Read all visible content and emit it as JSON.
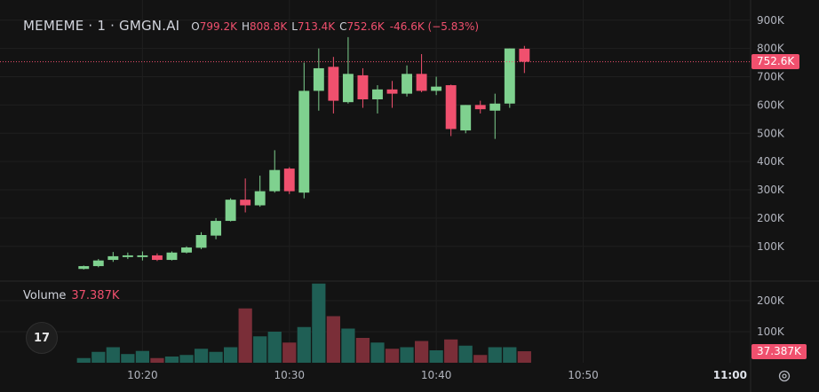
{
  "legend": {
    "symbol": "MEMEME · 1 · GMGN.AI",
    "open_key": "O",
    "open": "799.2K",
    "high_key": "H",
    "high": "808.8K",
    "low_key": "L",
    "low": "713.4K",
    "close_key": "C",
    "close": "752.6K",
    "change": "-46.6K (−5.83%)"
  },
  "volume_legend": {
    "label": "Volume",
    "value": "37.387K"
  },
  "price_tag": "752.6K",
  "volume_tag": "37.387K",
  "logo_text": "17",
  "colors": {
    "up": "#7fd18f",
    "down": "#f0506e",
    "vol_up": "#1f5f55",
    "vol_down": "#7a2e38",
    "background": "#131313",
    "grid": "#1f1f1f"
  },
  "chart_data": {
    "type": "candlestick",
    "x_unit": "time",
    "price_ticks": [
      "100K",
      "200K",
      "300K",
      "400K",
      "500K",
      "600K",
      "700K",
      "800K",
      "900K"
    ],
    "price_tick_values": [
      100,
      200,
      300,
      400,
      500,
      600,
      700,
      800,
      900
    ],
    "price_ylim": [
      -20,
      940
    ],
    "volume_ticks": [
      "100K",
      "200K"
    ],
    "volume_tick_values": [
      100,
      200
    ],
    "volume_ylim": [
      0,
      260
    ],
    "time_ticks": [
      "10:20",
      "10:30",
      "10:40",
      "10:50",
      "11:00"
    ],
    "time_tick_minutes": [
      20,
      30,
      40,
      50,
      60
    ],
    "xlim_minutes": [
      10.3,
      61.4
    ],
    "bars": [
      {
        "t": 16,
        "o": 20,
        "h": 32,
        "l": 18,
        "c": 30,
        "v": 15
      },
      {
        "t": 17,
        "o": 30,
        "h": 55,
        "l": 26,
        "c": 50,
        "v": 35
      },
      {
        "t": 18,
        "o": 52,
        "h": 80,
        "l": 45,
        "c": 65,
        "v": 50
      },
      {
        "t": 19,
        "o": 62,
        "h": 78,
        "l": 55,
        "c": 68,
        "v": 28
      },
      {
        "t": 20,
        "o": 62,
        "h": 82,
        "l": 50,
        "c": 68,
        "v": 38
      },
      {
        "t": 21,
        "o": 68,
        "h": 75,
        "l": 48,
        "c": 52,
        "v": 15
      },
      {
        "t": 22,
        "o": 52,
        "h": 82,
        "l": 50,
        "c": 78,
        "v": 20
      },
      {
        "t": 23,
        "o": 78,
        "h": 100,
        "l": 75,
        "c": 96,
        "v": 25
      },
      {
        "t": 24,
        "o": 95,
        "h": 150,
        "l": 90,
        "c": 140,
        "v": 45
      },
      {
        "t": 25,
        "o": 138,
        "h": 200,
        "l": 125,
        "c": 190,
        "v": 35
      },
      {
        "t": 26,
        "o": 190,
        "h": 270,
        "l": 188,
        "c": 265,
        "v": 50
      },
      {
        "t": 27,
        "o": 265,
        "h": 340,
        "l": 220,
        "c": 245,
        "v": 175
      },
      {
        "t": 28,
        "o": 245,
        "h": 350,
        "l": 240,
        "c": 295,
        "v": 85
      },
      {
        "t": 29,
        "o": 295,
        "h": 440,
        "l": 290,
        "c": 370,
        "v": 100
      },
      {
        "t": 30,
        "o": 375,
        "h": 380,
        "l": 285,
        "c": 295,
        "v": 65
      },
      {
        "t": 31,
        "o": 290,
        "h": 750,
        "l": 270,
        "c": 650,
        "v": 115
      },
      {
        "t": 32,
        "o": 650,
        "h": 800,
        "l": 580,
        "c": 730,
        "v": 255
      },
      {
        "t": 33,
        "o": 735,
        "h": 770,
        "l": 570,
        "c": 615,
        "v": 150
      },
      {
        "t": 34,
        "o": 610,
        "h": 840,
        "l": 605,
        "c": 710,
        "v": 110
      },
      {
        "t": 35,
        "o": 705,
        "h": 730,
        "l": 590,
        "c": 620,
        "v": 80
      },
      {
        "t": 36,
        "o": 620,
        "h": 670,
        "l": 570,
        "c": 655,
        "v": 65
      },
      {
        "t": 37,
        "o": 655,
        "h": 685,
        "l": 590,
        "c": 640,
        "v": 45
      },
      {
        "t": 38,
        "o": 640,
        "h": 740,
        "l": 630,
        "c": 710,
        "v": 50
      },
      {
        "t": 39,
        "o": 710,
        "h": 780,
        "l": 645,
        "c": 650,
        "v": 70
      },
      {
        "t": 40,
        "o": 650,
        "h": 700,
        "l": 635,
        "c": 665,
        "v": 40
      },
      {
        "t": 41,
        "o": 670,
        "h": 672,
        "l": 490,
        "c": 515,
        "v": 75
      },
      {
        "t": 42,
        "o": 510,
        "h": 600,
        "l": 500,
        "c": 600,
        "v": 55
      },
      {
        "t": 43,
        "o": 600,
        "h": 615,
        "l": 570,
        "c": 585,
        "v": 25
      },
      {
        "t": 44,
        "o": 580,
        "h": 640,
        "l": 480,
        "c": 605,
        "v": 50
      },
      {
        "t": 45,
        "o": 605,
        "h": 800,
        "l": 590,
        "c": 800,
        "v": 50
      },
      {
        "t": 46,
        "o": 799,
        "h": 809,
        "l": 713,
        "c": 753,
        "v": 37
      }
    ]
  }
}
